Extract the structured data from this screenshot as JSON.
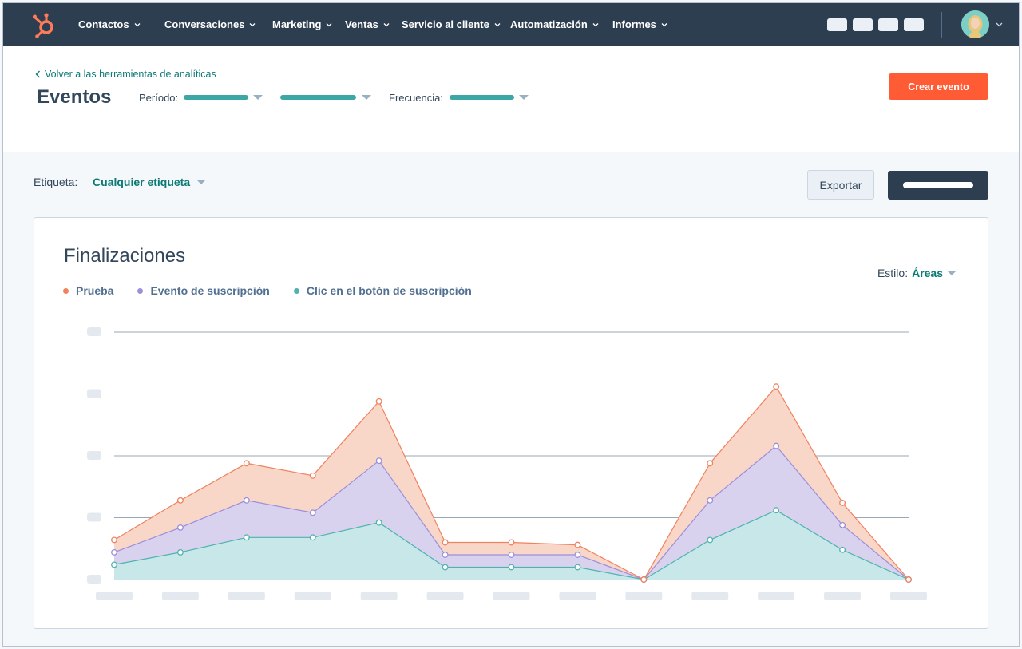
{
  "nav": {
    "items": [
      {
        "label": "Contactos"
      },
      {
        "label": "Conversaciones"
      },
      {
        "label": "Marketing"
      },
      {
        "label": "Ventas"
      },
      {
        "label": "Servicio al cliente"
      },
      {
        "label": "Automatización"
      },
      {
        "label": "Informes"
      }
    ],
    "brand_color": "#ff7a59",
    "background": "#2d3e50"
  },
  "header": {
    "back_link": "Volver a las herramientas de analíticas",
    "title": "Eventos",
    "period_label": "Período:",
    "frequency_label": "Frecuencia:",
    "create_button": "Crear evento"
  },
  "toolbar": {
    "tag_label": "Etiqueta:",
    "tag_value": "Cualquier etiqueta",
    "export_button": "Exportar"
  },
  "card": {
    "title": "Finalizaciones",
    "style_label": "Estilo:",
    "style_value": "Áreas"
  },
  "chart_data": {
    "type": "area",
    "stacked": true,
    "grid": true,
    "legend": "top-left",
    "x_count": 13,
    "ylim": [
      0,
      100
    ],
    "series": [
      {
        "name": "Clic en el botón de suscripción",
        "color": "#4fb3af",
        "fill": "#c8e7e9",
        "values": [
          6,
          11,
          17,
          17,
          23,
          5,
          5,
          5,
          0,
          16,
          28,
          12,
          0
        ]
      },
      {
        "name": "Evento de suscripción",
        "color": "#9c8fdb",
        "fill": "#d9d2ee",
        "values": [
          5,
          10,
          15,
          10,
          25,
          5,
          5,
          5,
          0,
          16,
          26,
          10,
          0
        ]
      },
      {
        "name": "Prueba",
        "color": "#f0825f",
        "fill": "#f8d6c8",
        "values": [
          5,
          11,
          15,
          15,
          24,
          5,
          5,
          4,
          0,
          15,
          24,
          9,
          0
        ]
      }
    ]
  }
}
